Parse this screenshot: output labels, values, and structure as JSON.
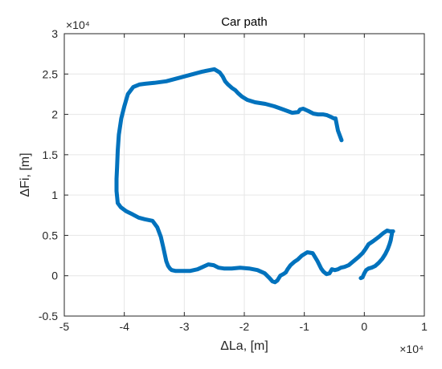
{
  "chart_data": {
    "type": "line",
    "title": "Car path",
    "xlabel": "ΔLa, [m]",
    "ylabel": "ΔFi, [m]",
    "xlim": [
      -50000,
      10000
    ],
    "ylim": [
      -5000,
      30000
    ],
    "x_multiplier": "×10⁴",
    "y_multiplier": "×10⁴",
    "xticks": [
      -50000,
      -40000,
      -30000,
      -20000,
      -10000,
      0,
      10000
    ],
    "yticks": [
      -5000,
      0,
      5000,
      10000,
      15000,
      20000,
      25000,
      30000
    ],
    "xtick_labels": [
      "-5",
      "-4",
      "-3",
      "-2",
      "-1",
      "0",
      "1"
    ],
    "ytick_labels": [
      "-0.5",
      "0",
      "0.5",
      "1",
      "1.5",
      "2",
      "2.5",
      "3"
    ],
    "grid": true,
    "series_color": "#0072BD",
    "series": [
      {
        "x": [
          -3800,
          -3900,
          -4400,
          -4800,
          -5100,
          -5600,
          -6200,
          -6900,
          -7700,
          -8500,
          -9300,
          -10200,
          -10700,
          -11000,
          -12000,
          -13500,
          -15000,
          -16500,
          -18200,
          -19500,
          -20400,
          -21000,
          -21500,
          -22100,
          -22700,
          -23200,
          -23600,
          -24100,
          -25000,
          -27000,
          -29000,
          -31000,
          -33000,
          -35000,
          -36500,
          -37500,
          -38500,
          -39400,
          -40000,
          -40500,
          -40900,
          -41100,
          -41200,
          -41300,
          -41300,
          -41100,
          -40600,
          -39700,
          -38600,
          -37600,
          -36600,
          -35300,
          -34500,
          -33900,
          -33500,
          -33200,
          -33000,
          -32700,
          -32400,
          -32100,
          -31500,
          -30400,
          -29000,
          -27800,
          -26900,
          -26000,
          -25100,
          -24300,
          -23400,
          -22100,
          -20700,
          -19200,
          -17800,
          -16600,
          -15800,
          -15300,
          -14900,
          -14500,
          -14000,
          -13500,
          -13100,
          -12800,
          -12300,
          -11700,
          -11100,
          -10400,
          -9500,
          -8600,
          -7800,
          -7200,
          -6800,
          -6300,
          -5800,
          -5400,
          -4900,
          -4400,
          -3900,
          -3300,
          -2600,
          -1800,
          -1000,
          -300,
          200,
          700,
          1500,
          2400,
          3200,
          3800,
          4300,
          4600,
          4800
        ],
        "y": [
          16800,
          17000,
          18000,
          19500,
          19500,
          19700,
          19900,
          20000,
          20000,
          20100,
          20400,
          20700,
          20600,
          20300,
          20200,
          20600,
          21000,
          21300,
          21500,
          21800,
          22200,
          22600,
          23000,
          23300,
          23700,
          24100,
          24700,
          25200,
          25600,
          25300,
          24900,
          24500,
          24100,
          23900,
          23800,
          23700,
          23400,
          22500,
          21000,
          19500,
          17500,
          15500,
          13500,
          12000,
          10500,
          9000,
          8500,
          8000,
          7600,
          7200,
          7000,
          6800,
          6000,
          4800,
          3500,
          2500,
          1800,
          1200,
          900,
          700,
          600,
          600,
          600,
          800,
          1100,
          1400,
          1300,
          1000,
          900,
          900,
          1000,
          900,
          700,
          300,
          -300,
          -700,
          -800,
          -600,
          0,
          200,
          400,
          800,
          1300,
          1700,
          2000,
          2500,
          2900,
          2800,
          1800,
          900,
          500,
          200,
          300,
          800,
          700,
          800,
          1000,
          1100,
          1300,
          1800,
          2300,
          2800,
          3300,
          3900,
          4300,
          4800,
          5300,
          5600,
          5500,
          5500,
          5500
        ]
      },
      {
        "x": [
          -600,
          -300,
          0,
          300,
          700,
          1200,
          1800,
          2400,
          3000,
          3500,
          3900,
          4200,
          4400,
          4500,
          4600
        ],
        "y": [
          -300,
          -200,
          300,
          700,
          900,
          1000,
          1200,
          1600,
          2100,
          2700,
          3300,
          3900,
          4400,
          4800,
          5200
        ]
      }
    ]
  }
}
